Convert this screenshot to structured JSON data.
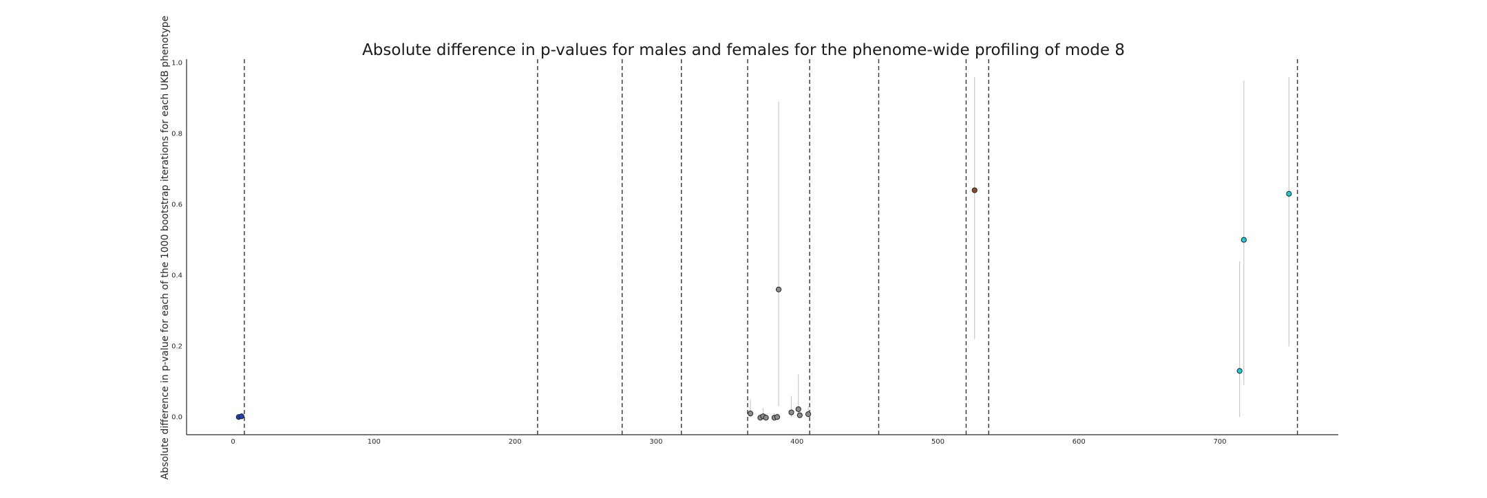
{
  "chart_data": {
    "type": "scatter",
    "title": "Absolute difference in p-values for males and females for the phenome-wide profiling of mode 8",
    "xlabel": "",
    "ylabel": "Absolute difference in p-value for each of the 1000 bootstrap iterations for each UKB phenotype",
    "xlim": [
      -33,
      784
    ],
    "ylim": [
      -0.05,
      1.01
    ],
    "x_ticks": [
      0,
      100,
      200,
      300,
      400,
      500,
      600,
      700
    ],
    "y_ticks": [
      0.0,
      0.2,
      0.4,
      0.6,
      0.8,
      1.0
    ],
    "x_tick_labels": [
      "0",
      "100",
      "200",
      "300",
      "400",
      "500",
      "600",
      "700"
    ],
    "y_tick_labels": [
      "0.0",
      "0.2",
      "0.4",
      "0.6",
      "0.8",
      "1.0"
    ],
    "grid": false,
    "category_boundaries": [
      8,
      216,
      276,
      318,
      365,
      409,
      458,
      520,
      536,
      755
    ],
    "points": [
      {
        "x": 4,
        "y": 0.0,
        "lo": 0.0,
        "hi": 0.002,
        "color": "#1f3fbf"
      },
      {
        "x": 6,
        "y": 0.002,
        "lo": 0.0,
        "hi": 0.004,
        "color": "#1f3fbf"
      },
      {
        "x": 367,
        "y": 0.01,
        "lo": 0.0,
        "hi": 0.05,
        "color": "#8c8c8c"
      },
      {
        "x": 374,
        "y": -0.002,
        "lo": -0.003,
        "hi": 0.01,
        "color": "#8c8c8c"
      },
      {
        "x": 376,
        "y": 0.002,
        "lo": -0.003,
        "hi": 0.025,
        "color": "#8c8c8c"
      },
      {
        "x": 378,
        "y": -0.002,
        "lo": -0.003,
        "hi": 0.01,
        "color": "#8c8c8c"
      },
      {
        "x": 384,
        "y": -0.002,
        "lo": -0.003,
        "hi": 0.01,
        "color": "#8c8c8c"
      },
      {
        "x": 386,
        "y": 0.0,
        "lo": -0.003,
        "hi": 0.01,
        "color": "#8c8c8c"
      },
      {
        "x": 387,
        "y": 0.36,
        "lo": 0.03,
        "hi": 0.89,
        "color": "#8c8c8c"
      },
      {
        "x": 396,
        "y": 0.013,
        "lo": 0.0,
        "hi": 0.06,
        "color": "#8c8c8c"
      },
      {
        "x": 401,
        "y": 0.022,
        "lo": 0.0,
        "hi": 0.12,
        "color": "#8c8c8c"
      },
      {
        "x": 402,
        "y": 0.005,
        "lo": 0.0,
        "hi": 0.03,
        "color": "#8c8c8c"
      },
      {
        "x": 408,
        "y": 0.008,
        "lo": 0.0,
        "hi": 0.03,
        "color": "#8c8c8c"
      },
      {
        "x": 526,
        "y": 0.64,
        "lo": 0.22,
        "hi": 0.96,
        "color": "#8a4a22"
      },
      {
        "x": 714,
        "y": 0.13,
        "lo": 0.0,
        "hi": 0.44,
        "color": "#1ec8d8"
      },
      {
        "x": 717,
        "y": 0.5,
        "lo": 0.09,
        "hi": 0.95,
        "color": "#1ec8d8"
      },
      {
        "x": 749,
        "y": 0.63,
        "lo": 0.2,
        "hi": 0.96,
        "color": "#1ec8d8"
      }
    ]
  }
}
